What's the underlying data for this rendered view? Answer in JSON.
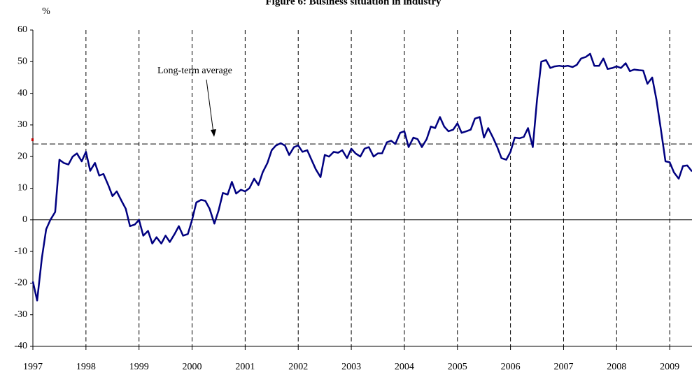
{
  "chart_data": {
    "type": "line",
    "title": "Figure 6: Business situation in industry",
    "y_label": "%",
    "annotation": "Long-term average",
    "reference_value": 24,
    "x": [
      1997,
      1997.08,
      1997.17,
      1997.25,
      1997.33,
      1997.42,
      1997.5,
      1997.58,
      1997.67,
      1997.75,
      1997.83,
      1997.92,
      1998,
      1998.08,
      1998.17,
      1998.25,
      1998.33,
      1998.42,
      1998.5,
      1998.58,
      1998.67,
      1998.75,
      1998.83,
      1998.92,
      1999,
      1999.08,
      1999.17,
      1999.25,
      1999.33,
      1999.42,
      1999.5,
      1999.58,
      1999.67,
      1999.75,
      1999.83,
      1999.92,
      2000,
      2000.08,
      2000.17,
      2000.25,
      2000.33,
      2000.42,
      2000.5,
      2000.58,
      2000.67,
      2000.75,
      2000.83,
      2000.92,
      2001,
      2001.08,
      2001.17,
      2001.25,
      2001.33,
      2001.42,
      2001.5,
      2001.58,
      2001.67,
      2001.75,
      2001.83,
      2001.92,
      2002,
      2002.08,
      2002.17,
      2002.25,
      2002.33,
      2002.42,
      2002.5,
      2002.58,
      2002.67,
      2002.75,
      2002.83,
      2002.92,
      2003,
      2003.08,
      2003.17,
      2003.25,
      2003.33,
      2003.42,
      2003.5,
      2003.58,
      2003.67,
      2003.75,
      2003.83,
      2003.92,
      2004,
      2004.08,
      2004.17,
      2004.25,
      2004.33,
      2004.42,
      2004.5,
      2004.58,
      2004.67,
      2004.75,
      2004.83,
      2004.92,
      2005,
      2005.08,
      2005.17,
      2005.25,
      2005.33,
      2005.42,
      2005.5,
      2005.58,
      2005.67,
      2005.75,
      2005.83,
      2005.92,
      2006,
      2006.08,
      2006.17,
      2006.25,
      2006.33,
      2006.42,
      2006.5,
      2006.58,
      2006.67,
      2006.75,
      2006.83,
      2006.92,
      2007,
      2007.08,
      2007.17,
      2007.25,
      2007.33,
      2007.42,
      2007.5,
      2007.58,
      2007.67,
      2007.75,
      2007.83,
      2007.92,
      2008,
      2008.08,
      2008.17,
      2008.25,
      2008.33,
      2008.42,
      2008.5,
      2008.58,
      2008.67,
      2008.75,
      2008.83,
      2008.92,
      2009,
      2009.08,
      2009.17,
      2009.25,
      2009.33,
      2009.42
    ],
    "series": [
      {
        "color": "#000080",
        "values": [
          -19.5,
          -25.5,
          -12,
          -3,
          0,
          2.5,
          19,
          18,
          17.5,
          20,
          21,
          18.5,
          21.5,
          15.5,
          18,
          14,
          14.5,
          11,
          7.5,
          9,
          6,
          3.5,
          -2,
          -1.5,
          0,
          -5,
          -3.5,
          -7.5,
          -5.5,
          -7.5,
          -5,
          -7,
          -4.5,
          -2,
          -5,
          -4.5,
          0,
          5.5,
          6.3,
          6,
          3.5,
          -1.2,
          3,
          8.5,
          8,
          12,
          8.3,
          9.5,
          9,
          10,
          13,
          11,
          15,
          18,
          22,
          23.5,
          24.2,
          23.5,
          20.5,
          23,
          23.5,
          21.5,
          22,
          19,
          16,
          13.5,
          20.5,
          20,
          21.5,
          21.2,
          22,
          19.5,
          22.5,
          21,
          20,
          22.5,
          23,
          20,
          21,
          21,
          24.5,
          25,
          24,
          27.5,
          28,
          23,
          26,
          25.5,
          23,
          25.5,
          29.5,
          29,
          32.5,
          29.5,
          28,
          28.5,
          30.5,
          27.5,
          28,
          28.5,
          32,
          32.5,
          26,
          29,
          26,
          23,
          19.5,
          19,
          21.5,
          26,
          25.8,
          26.2,
          29,
          23,
          38,
          50,
          50.5,
          48,
          48.5,
          48.7,
          48.5,
          48.7,
          48.3,
          49,
          51,
          51.5,
          52.5,
          48.7,
          48.7,
          51,
          47.7,
          48,
          48.5,
          48,
          49.5,
          47,
          47.5,
          47.3,
          47.2,
          43,
          45,
          38,
          29,
          18.5,
          18.2,
          15,
          13,
          17,
          17.2,
          15.3
        ]
      }
    ],
    "xlim": [
      1997,
      2009.42
    ],
    "xticks": [
      1997,
      1998,
      1999,
      2000,
      2001,
      2002,
      2003,
      2004,
      2005,
      2006,
      2007,
      2008,
      2009
    ],
    "ylim": [
      -40,
      60
    ],
    "yticks": [
      -40,
      -30,
      -20,
      -10,
      0,
      10,
      20,
      30,
      40,
      50,
      60
    ],
    "grid": true
  }
}
